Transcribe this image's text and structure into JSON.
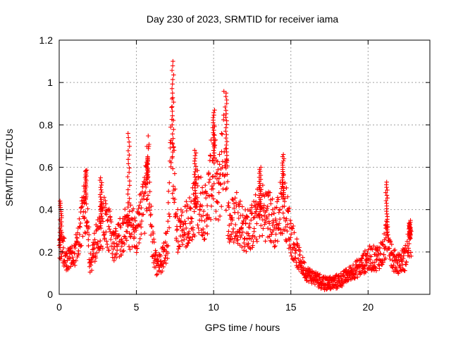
{
  "chart_data": {
    "type": "scatter",
    "title": "Day 230 of 2023, SRMTID for receiver iama",
    "xlabel": "GPS time / hours",
    "ylabel": "SRMTID / TECUs",
    "xlim": [
      0,
      24
    ],
    "ylim": [
      0,
      1.2
    ],
    "grid": true,
    "marker": "+",
    "color": "#ff0000",
    "xticks": [
      0,
      5,
      10,
      15,
      20
    ],
    "xtick_labels": [
      "0",
      "5",
      "10",
      "15",
      "20"
    ],
    "yticks": [
      0,
      0.2,
      0.4,
      0.6,
      0.8,
      1.0,
      1.2
    ],
    "ytick_labels": [
      "0",
      "0.2",
      "0.4",
      "0.6",
      "0.8",
      "1",
      "1.2"
    ],
    "envelope": {
      "description": "Approximate level of the dense red '+' series vs GPS time; points scatter around these values",
      "x": [
        0,
        0.5,
        1.0,
        1.5,
        1.8,
        2.0,
        2.5,
        3.0,
        3.5,
        4.0,
        4.5,
        5.0,
        5.5,
        5.8,
        6.0,
        6.3,
        6.6,
        7.0,
        7.3,
        7.6,
        8.0,
        8.5,
        9.0,
        9.5,
        10.0,
        10.3,
        10.7,
        11.0,
        11.5,
        12.0,
        12.5,
        13.0,
        13.5,
        14.0,
        14.5,
        15.0,
        15.5,
        16.0,
        16.5,
        17.0,
        17.5,
        18.0,
        18.5,
        19.0,
        19.5,
        20.0,
        20.5,
        21.0,
        21.3,
        21.6,
        22.0,
        22.4,
        22.7
      ],
      "y": [
        0.25,
        0.17,
        0.18,
        0.36,
        0.46,
        0.14,
        0.28,
        0.36,
        0.24,
        0.27,
        0.33,
        0.3,
        0.42,
        0.6,
        0.25,
        0.14,
        0.15,
        0.24,
        0.72,
        0.3,
        0.3,
        0.36,
        0.45,
        0.38,
        0.62,
        0.45,
        0.75,
        0.32,
        0.38,
        0.3,
        0.32,
        0.4,
        0.38,
        0.32,
        0.45,
        0.28,
        0.17,
        0.1,
        0.08,
        0.06,
        0.05,
        0.06,
        0.08,
        0.11,
        0.13,
        0.17,
        0.17,
        0.2,
        0.3,
        0.16,
        0.15,
        0.17,
        0.26
      ],
      "peaks": [
        {
          "x": 0.1,
          "y": 0.44
        },
        {
          "x": 1.7,
          "y": 0.58
        },
        {
          "x": 2.7,
          "y": 0.55
        },
        {
          "x": 4.5,
          "y": 0.76
        },
        {
          "x": 5.7,
          "y": 0.65
        },
        {
          "x": 7.35,
          "y": 1.1
        },
        {
          "x": 8.8,
          "y": 0.68
        },
        {
          "x": 10.0,
          "y": 0.87
        },
        {
          "x": 10.8,
          "y": 0.95
        },
        {
          "x": 13.0,
          "y": 0.6
        },
        {
          "x": 14.5,
          "y": 0.66
        },
        {
          "x": 21.2,
          "y": 0.53
        },
        {
          "x": 22.7,
          "y": 0.34
        }
      ]
    }
  }
}
